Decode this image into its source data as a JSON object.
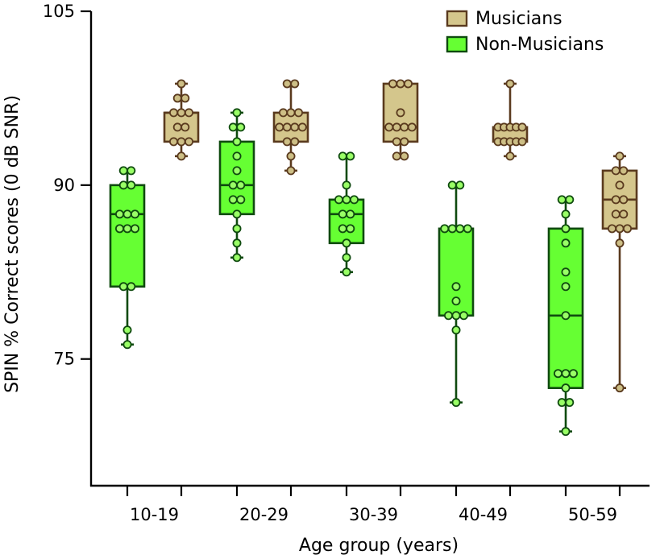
{
  "chart_data": {
    "type": "box",
    "title": "",
    "xlabel": "Age group (years)",
    "ylabel": "SPIN % Correct scores (0 dB SNR)",
    "ylim": [
      64,
      105
    ],
    "yticks": [
      75,
      90,
      105
    ],
    "categories": [
      "10-19",
      "20-29",
      "30-39",
      "40-49",
      "50-59"
    ],
    "legend_position": "top-right",
    "series": [
      {
        "name": "Non-Musicians",
        "fill": "#66ff33",
        "stroke": "#0f4a0f",
        "point_fill": "#99ff66",
        "boxes": [
          {
            "min": 76.25,
            "q1": 81.25,
            "median": 87.5,
            "q3": 90,
            "max": 91.25,
            "points": [
              91.25,
              91.25,
              90,
              90,
              87.5,
              87.5,
              87.5,
              86.25,
              86.25,
              86.25,
              81.25,
              81.25,
              77.5,
              76.25
            ]
          },
          {
            "min": 83.75,
            "q1": 87.5,
            "median": 90,
            "q3": 93.75,
            "max": 96.25,
            "points": [
              96.25,
              95,
              95,
              93.75,
              92.5,
              91.25,
              90,
              90,
              88.75,
              88.75,
              87.5,
              86.25,
              85,
              83.75
            ]
          },
          {
            "min": 82.5,
            "q1": 85,
            "median": 87.5,
            "q3": 88.75,
            "max": 92.5,
            "points": [
              92.5,
              92.5,
              90,
              88.75,
              88.75,
              88.75,
              87.5,
              87.5,
              86.25,
              86.25,
              85,
              83.75,
              82.5
            ]
          },
          {
            "min": 71.25,
            "q1": 78.75,
            "median": 78.75,
            "q3": 86.25,
            "max": 90,
            "points": [
              90,
              90,
              86.25,
              86.25,
              86.25,
              86.25,
              81.25,
              80,
              78.75,
              78.75,
              78.75,
              77.5,
              71.25
            ]
          },
          {
            "min": 68.75,
            "q1": 72.5,
            "median": 78.75,
            "q3": 86.25,
            "max": 88.75,
            "points": [
              88.75,
              88.75,
              87.5,
              86.25,
              85,
              82.5,
              81.25,
              78.75,
              73.75,
              73.75,
              73.75,
              72.5,
              71.25,
              71.25,
              68.75
            ]
          }
        ]
      },
      {
        "name": "Musicians",
        "fill": "#d4c68c",
        "stroke": "#5a3a1e",
        "point_fill": "#cdbf86",
        "boxes": [
          {
            "min": 92.5,
            "q1": 93.75,
            "median": 96.25,
            "q3": 96.25,
            "max": 98.75,
            "points": [
              98.75,
              97.5,
              97.5,
              96.25,
              96.25,
              96.25,
              95,
              95,
              93.75,
              93.75,
              93.75,
              92.5
            ]
          },
          {
            "min": 91.25,
            "q1": 93.75,
            "median": 95,
            "q3": 96.25,
            "max": 98.75,
            "points": [
              98.75,
              98.75,
              96.25,
              96.25,
              96.25,
              95,
              95,
              95,
              95,
              93.75,
              93.75,
              92.5,
              91.25
            ]
          },
          {
            "min": 92.5,
            "q1": 93.75,
            "median": 95,
            "q3": 98.75,
            "max": 98.75,
            "points": [
              98.75,
              98.75,
              98.75,
              96.25,
              95,
              95,
              95,
              95,
              93.75,
              93.75,
              92.5,
              92.5
            ]
          },
          {
            "min": 92.5,
            "q1": 93.75,
            "median": 95,
            "q3": 95,
            "max": 98.75,
            "points": [
              98.75,
              95,
              95,
              95,
              95,
              95,
              93.75,
              93.75,
              93.75,
              93.75,
              93.75,
              92.5
            ]
          },
          {
            "min": 72.5,
            "q1": 86.25,
            "median": 88.75,
            "q3": 91.25,
            "max": 92.5,
            "points": [
              92.5,
              91.25,
              91.25,
              90,
              88.75,
              88.75,
              87.5,
              87.5,
              86.25,
              86.25,
              86.25,
              85,
              72.5
            ]
          }
        ]
      }
    ]
  }
}
